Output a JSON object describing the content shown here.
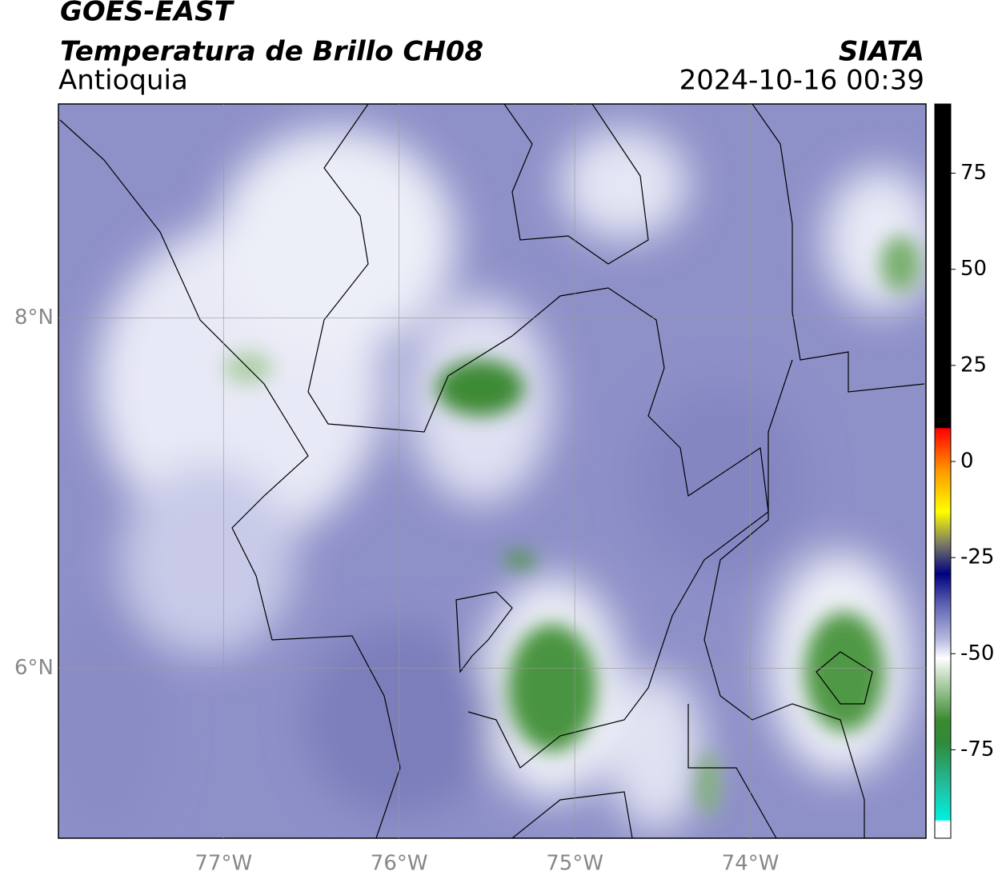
{
  "chart_data": {
    "type": "map",
    "title": "GOES-EAST",
    "subtitle": "Temperatura de Brillo CH08",
    "region": "Antioquia",
    "source": "SIATA",
    "datetime": "2024-10-16 00:39",
    "xlim": [
      -77.94,
      -73.0
    ],
    "ylim": [
      5.03,
      9.22
    ],
    "xticks": [
      {
        "value": -77,
        "label": "77°W"
      },
      {
        "value": -76,
        "label": "76°W"
      },
      {
        "value": -75,
        "label": "75°W"
      },
      {
        "value": -74,
        "label": "74°W"
      }
    ],
    "yticks": [
      {
        "value": 6,
        "label": "6°N"
      },
      {
        "value": 8,
        "label": "8°N"
      }
    ],
    "grid": true,
    "colorbar": {
      "lim": [
        -98,
        93
      ],
      "ticks": [
        75,
        50,
        25,
        0,
        -25,
        -50,
        -75
      ]
    }
  }
}
